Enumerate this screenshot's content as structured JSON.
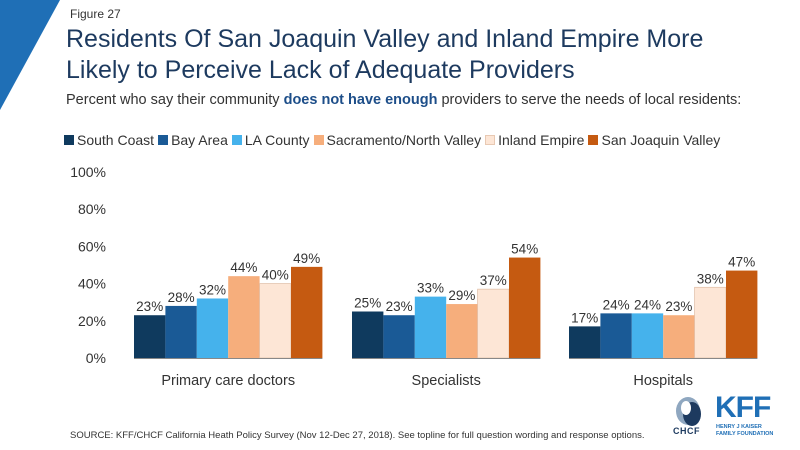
{
  "figure_label": "Figure 27",
  "title": "Residents Of San Joaquin Valley and Inland Empire More Likely to Perceive Lack of Adequate Providers",
  "subtitle": {
    "prefix": "Percent who say their community ",
    "emphasis": "does not have enough",
    "suffix": " providers to serve the needs of local residents:"
  },
  "source": "SOURCE: KFF/CHCF California Heath Policy Survey (Nov 12-Dec 27, 2018). See topline for full question wording and response options.",
  "logos": {
    "chcf": "CHCF",
    "kff": "KFF",
    "kff_sub_line1": "HENRY J KAISER",
    "kff_sub_line2": "FAMILY FOUNDATION"
  },
  "colors": {
    "corner": "#1f6fb6",
    "title": "#1d3a5f"
  },
  "chart_data": {
    "type": "bar",
    "categories": [
      "Primary care doctors",
      "Specialists",
      "Hospitals"
    ],
    "series": [
      {
        "name": "South Coast",
        "color": "#0f3a5e",
        "values": [
          23,
          25,
          17
        ]
      },
      {
        "name": "Bay Area",
        "color": "#1a5a96",
        "values": [
          28,
          23,
          24
        ]
      },
      {
        "name": "LA County",
        "color": "#45b2ec",
        "values": [
          32,
          33,
          24
        ]
      },
      {
        "name": "Sacramento/North Valley",
        "color": "#f6ae7c",
        "values": [
          44,
          29,
          23
        ]
      },
      {
        "name": "Inland Empire",
        "color": "#fde6d6",
        "values": [
          40,
          37,
          38
        ]
      },
      {
        "name": "San Joaquin Valley",
        "color": "#c55a11",
        "values": [
          49,
          54,
          47
        ]
      }
    ],
    "value_labels": [
      [
        "23%",
        "25%",
        "17%"
      ],
      [
        "28%",
        "23%",
        "24%"
      ],
      [
        "32%",
        "33%",
        "24%"
      ],
      [
        "44%",
        "29%",
        "23%"
      ],
      [
        "40%",
        "37%",
        "38%"
      ],
      [
        "49%",
        "54%",
        "47%"
      ]
    ],
    "y_ticks": [
      "0%",
      "20%",
      "40%",
      "60%",
      "80%",
      "100%"
    ],
    "ylim": [
      0,
      100
    ],
    "legend_position": "top",
    "grid": false
  }
}
